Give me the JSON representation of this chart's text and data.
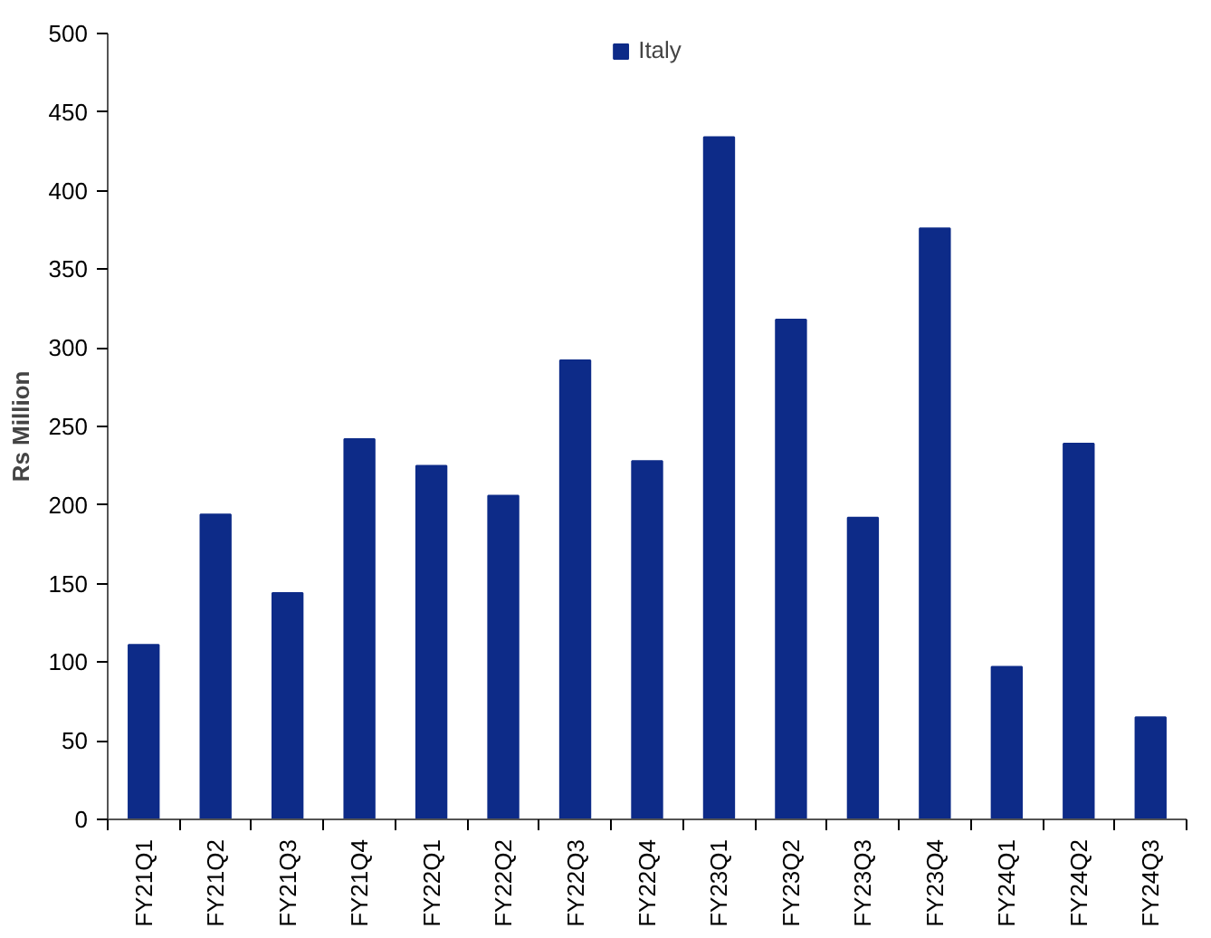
{
  "chart_data": {
    "type": "bar",
    "ylabel": "Rs Million",
    "categories": [
      "FY21Q1",
      "FY21Q2",
      "FY21Q3",
      "FY21Q4",
      "FY22Q1",
      "FY22Q2",
      "FY22Q3",
      "FY22Q4",
      "FY23Q1",
      "FY23Q2",
      "FY23Q3",
      "FY23Q4",
      "FY24Q1",
      "FY24Q2",
      "FY24Q3"
    ],
    "series": [
      {
        "name": "Italy",
        "color": "#0d2b88",
        "values": [
          111,
          194,
          144,
          242,
          225,
          206,
          292,
          228,
          434,
          318,
          192,
          376,
          97,
          239,
          65
        ]
      }
    ],
    "ylim": [
      0,
      500
    ],
    "yticks": [
      0,
      50,
      100,
      150,
      200,
      250,
      300,
      350,
      400,
      450,
      500
    ],
    "grid": false,
    "legend": "top"
  }
}
